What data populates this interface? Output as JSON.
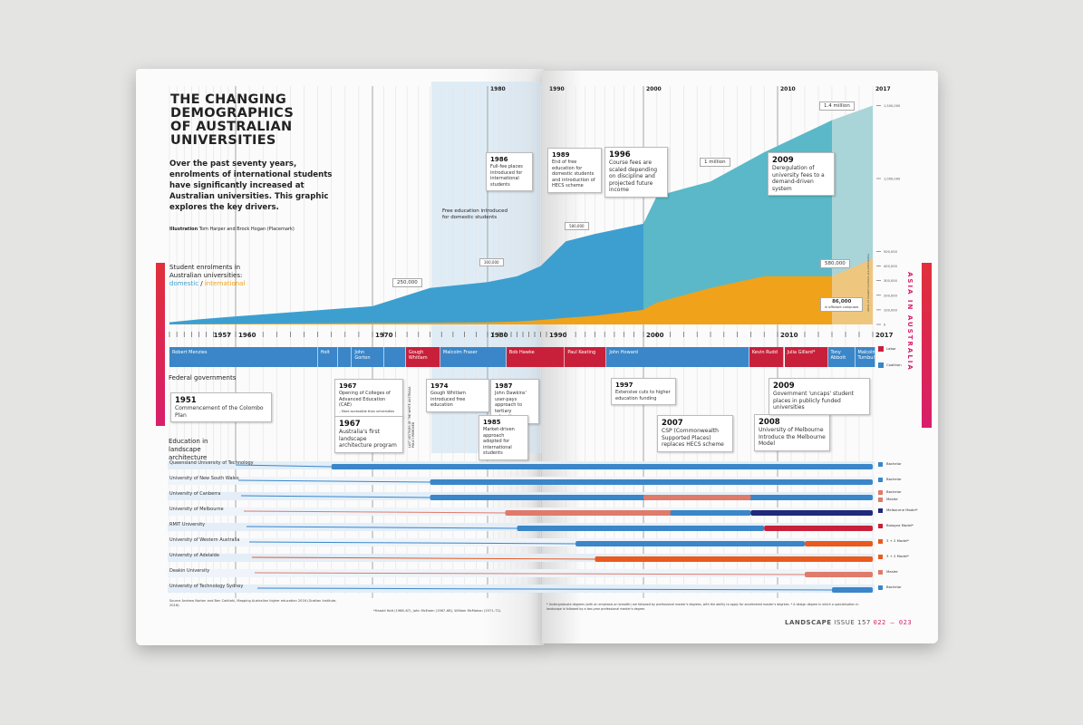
{
  "title": "THE CHANGING\nDEMOGRAPHICS\nOF AUSTRALIAN\nUNIVERSITIES",
  "intro": "Over the past seventy years, enrolments of international students have significantly increased at Australian universities. This graphic explores the key drivers.",
  "credit": {
    "label": "Illustration",
    "text": "Tom Harper and Brock Hogan (Placemark)"
  },
  "enrolments_label": "Student enrolments in Australian universities:",
  "legend": {
    "domestic": "domestic",
    "sep": " / ",
    "international": "international"
  },
  "colors": {
    "domestic": "#3d9fd0",
    "domestic_late": "#5bb8c8",
    "international": "#f0a21a",
    "labor": "#c8203a",
    "coalition": "#3a86c8",
    "accent": "#d81e6a"
  },
  "year_ticks": [
    "1957",
    "1960",
    "1970",
    "1980",
    "1990",
    "2000",
    "2010",
    "2017"
  ],
  "chart_data": {
    "type": "area",
    "x": [
      1951,
      1955,
      1960,
      1965,
      1970,
      1975,
      1980,
      1985,
      1989,
      1992,
      1995,
      2000,
      2001,
      2005,
      2009,
      2014,
      2017
    ],
    "series": [
      {
        "name": "domestic",
        "values": [
          15000,
          35000,
          55000,
          90000,
          125000,
          250000,
          290000,
          330000,
          400000,
          570000,
          620000,
          690000,
          880000,
          980000,
          1180000,
          1400000,
          1500000
        ]
      },
      {
        "name": "international",
        "values": [
          0,
          2000,
          5000,
          8000,
          10000,
          12000,
          15000,
          20000,
          30000,
          45000,
          60000,
          100000,
          150000,
          250000,
          330000,
          330000,
          450000
        ]
      }
    ],
    "projection_from": 2014,
    "yticks": [
      "1,500,000",
      "1,000,000",
      "500,000",
      "400,000",
      "300,000",
      "200,000",
      "100,000",
      "0"
    ],
    "ylim": [
      0,
      1500000
    ]
  },
  "chart_labels": {
    "v250k": "250,000",
    "v300k": "300,000",
    "v580k": "580,000",
    "v1m": "1 million",
    "v14m": "1.4 million",
    "intl580": "580,000",
    "offshore_num": "86,000",
    "offshore_txt": "in offshore campuses",
    "estimate_note": "2016–17 student numbers are estimations",
    "free_ed": "Free education introduced for domestic students"
  },
  "events_top": [
    {
      "year": "1986",
      "text": "Full-fee places introduced for international students"
    },
    {
      "year": "1989",
      "text": "End of free education for domestic students and introduction of HECS scheme"
    },
    {
      "year": "1996",
      "text": "Course fees are scaled depending on discipline and projected future income"
    },
    {
      "year": "2009",
      "text": "Deregulation of university fees to a demand-driven system"
    }
  ],
  "federal_label": "Federal governments",
  "governments": [
    {
      "name": "Robert Menzies",
      "party": "coalition",
      "from": 1951,
      "to": 1966
    },
    {
      "name": "Holt",
      "party": "coalition",
      "from": 1966,
      "to": 1967.5
    },
    {
      "name": "",
      "party": "coalition",
      "from": 1967.5,
      "to": 1968.5
    },
    {
      "name": "John Gorton",
      "party": "coalition",
      "from": 1968.5,
      "to": 1971
    },
    {
      "name": "",
      "party": "coalition",
      "from": 1971,
      "to": 1972.9
    },
    {
      "name": "Gough Whitlam",
      "party": "labor",
      "from": 1972.9,
      "to": 1975.9
    },
    {
      "name": "Malcolm Fraser",
      "party": "coalition",
      "from": 1975.9,
      "to": 1983.2
    },
    {
      "name": "Bob Hawke",
      "party": "labor",
      "from": 1983.2,
      "to": 1991.9
    },
    {
      "name": "Paul Keating",
      "party": "labor",
      "from": 1991.9,
      "to": 1996.2
    },
    {
      "name": "John Howard",
      "party": "coalition",
      "from": 1996.2,
      "to": 2007.9
    },
    {
      "name": "Kevin Rudd",
      "party": "labor",
      "from": 2007.9,
      "to": 2010.5
    },
    {
      "name": "Julia Gillard*",
      "party": "labor",
      "from": 2010.5,
      "to": 2013.7
    },
    {
      "name": "Tony Abbott",
      "party": "coalition",
      "from": 2013.7,
      "to": 2015.7
    },
    {
      "name": "Malcolm Turnbull",
      "party": "coalition",
      "from": 2015.7,
      "to": 2017.2
    }
  ],
  "party_legend": {
    "labor": "Labor",
    "coalition": "Coalition"
  },
  "events_mid": [
    {
      "year": "1951",
      "text": "Commencement of the Colombo Plan"
    },
    {
      "year": "1967",
      "text": "Opening of Colleges of Advanced Education (CAE)",
      "sub": "– More accessible than universities"
    },
    {
      "year": "1967",
      "text": "Australia's first landscape architecture program"
    },
    {
      "year": "1974",
      "text": "Gough Whitlam introduced free education"
    },
    {
      "year": "1987",
      "text": "John Dawkins' user-pays approach to tertiary education"
    },
    {
      "year": "1985",
      "text": "Market-driven approach adopted for international students"
    },
    {
      "year": "1997",
      "text": "Extensive cuts to higher education funding"
    },
    {
      "year": "2007",
      "text": "CSP (Commonwealth Supported Places) replaces HECS scheme"
    },
    {
      "year": "2008",
      "text": "University of Melbourne Introduce the Melbourne Model"
    },
    {
      "year": "2009",
      "text": "Government 'uncaps' student places in publicly funded universities"
    }
  ],
  "white_australia": "LAST VESTIGES OF THE WHITE AUSTRALIA POLICY REMOVED",
  "edu_label": "Education in landscape architecture",
  "universities": [
    {
      "name": "Queensland University of Technology",
      "degrees": [
        "Bachelor"
      ],
      "segs": [
        {
          "from": 1967,
          "to": 2017,
          "c": "#3a86c8"
        }
      ]
    },
    {
      "name": "University of New South Wales",
      "degrees": [
        "Bachelor"
      ],
      "segs": [
        {
          "from": 1975,
          "to": 2017,
          "c": "#3a86c8"
        }
      ]
    },
    {
      "name": "University of Canberra",
      "degrees": [
        "Bachelor",
        "Master"
      ],
      "segs": [
        {
          "from": 1975,
          "to": 2017,
          "c": "#3a86c8"
        },
        {
          "from": 2000,
          "to": 2008,
          "c": "#e07a6a"
        }
      ]
    },
    {
      "name": "University of Melbourne",
      "degrees": [
        "Melbourne Model*"
      ],
      "segs": [
        {
          "from": 1983,
          "to": 2008,
          "c": "#e07a6a"
        },
        {
          "from": 2002,
          "to": 2008,
          "c": "#3a86c8"
        },
        {
          "from": 2008,
          "to": 2017,
          "c": "#1f2a7a"
        }
      ]
    },
    {
      "name": "RMIT University",
      "degrees": [
        "Bologna Model*"
      ],
      "segs": [
        {
          "from": 1985,
          "to": 2009,
          "c": "#3a86c8"
        },
        {
          "from": 2009,
          "to": 2017,
          "c": "#c8203a"
        }
      ]
    },
    {
      "name": "University of Western Australia",
      "degrees": [
        "3 + 2 Model*"
      ],
      "segs": [
        {
          "from": 1993,
          "to": 2012,
          "c": "#3a86c8"
        },
        {
          "from": 2012,
          "to": 2017,
          "c": "#ea5a1e"
        }
      ]
    },
    {
      "name": "University of Adelaide",
      "degrees": [
        "3 + 2 Model*"
      ],
      "segs": [
        {
          "from": 1995,
          "to": 2017,
          "c": "#ea5a1e"
        }
      ]
    },
    {
      "name": "Deakin University",
      "degrees": [
        "Master"
      ],
      "segs": [
        {
          "from": 2012,
          "to": 2017,
          "c": "#e07a6a"
        }
      ]
    },
    {
      "name": "University of Technology Sydney",
      "degrees": [
        "Bachelor"
      ],
      "segs": [
        {
          "from": 2014,
          "to": 2017,
          "c": "#3a86c8"
        }
      ]
    }
  ],
  "source": "Source Andrew Norton and Ben Cakitaki, Mapping Australian higher education 2016 (Grattan Institute, 2016).",
  "pm_note": "*Harold Holt (1966–67), John McEwen (1967–68), William McMahon (1971–72).",
  "footnote": "* Undergraduate degrees (with an emphasis on breadth) are followed by professional master's degrees, with the ability to apply for accelerated master's degrees. * A design degree in which a specialisation in landscape is followed by a two-year professional master's degree.",
  "side_label": "ASIA IN AUSTRALIA",
  "folio": {
    "mag": "LANDSCAPE",
    "issue": "ISSUE 157",
    "pages": "022 – 023"
  }
}
